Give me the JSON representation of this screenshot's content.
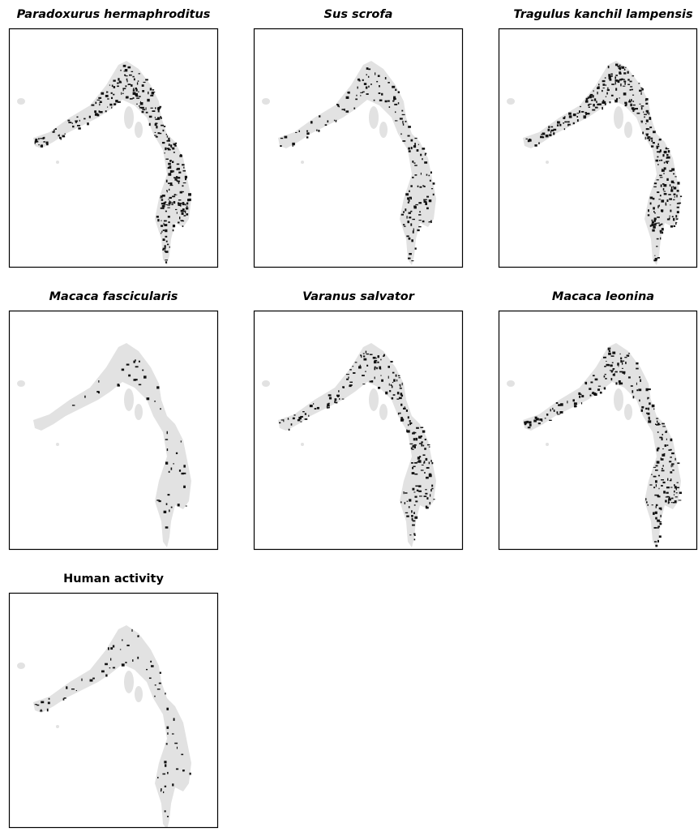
{
  "panels": [
    {
      "title": "Paradoxurus hermaphroditus",
      "italic": true
    },
    {
      "title": "Sus scrofa",
      "italic": true
    },
    {
      "title": "Tragulus kanchil lampensis",
      "italic": true
    },
    {
      "title": "Macaca fascicularis",
      "italic": true
    },
    {
      "title": "Varanus salvator",
      "italic": true
    },
    {
      "title": "Macaca leonina",
      "italic": true
    },
    {
      "title": "Human activity",
      "italic": false
    }
  ]
}
